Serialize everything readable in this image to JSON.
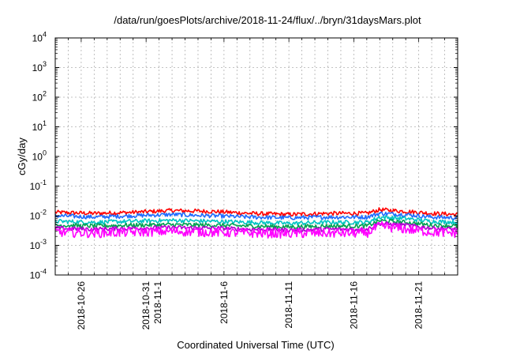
{
  "chart_data": {
    "type": "line",
    "title": "/data/run/goesPlots/archive/2018-11-24/flux/../bryn/31daysMars.plot",
    "xlabel": "Coordinated Universal Time (UTC)",
    "ylabel": "cGy/day",
    "y_scale": "log",
    "ylim": [
      0.0001,
      10000
    ],
    "y_ticks": [
      {
        "value": 0.0001,
        "base": "10",
        "exp": "-4"
      },
      {
        "value": 0.001,
        "base": "10",
        "exp": "-3"
      },
      {
        "value": 0.01,
        "base": "10",
        "exp": "-2"
      },
      {
        "value": 0.1,
        "base": "10",
        "exp": "-1"
      },
      {
        "value": 1,
        "base": "10",
        "exp": "0"
      },
      {
        "value": 10,
        "base": "10",
        "exp": "1"
      },
      {
        "value": 100,
        "base": "10",
        "exp": "2"
      },
      {
        "value": 1000,
        "base": "10",
        "exp": "3"
      },
      {
        "value": 10000,
        "base": "10",
        "exp": "4"
      }
    ],
    "xlim": [
      "2018-10-24",
      "2018-11-24"
    ],
    "x_ticks": [
      {
        "date": "2018-10-26",
        "lines": [
          "2018-10-26"
        ]
      },
      {
        "date": "2018-10-31",
        "lines": [
          "2018-10-31",
          "2018-11-1"
        ]
      },
      {
        "date": "2018-11-06",
        "lines": [
          "2018-11-6"
        ]
      },
      {
        "date": "2018-11-11",
        "lines": [
          "2018-11-11"
        ]
      },
      {
        "date": "2018-11-16",
        "lines": [
          "2018-11-16"
        ]
      },
      {
        "date": "2018-11-21",
        "lines": [
          "2018-11-21"
        ]
      }
    ],
    "grid": true,
    "series": [
      {
        "color": "#ff0000",
        "x": [
          "2018-10-24",
          "2018-10-27",
          "2018-10-30",
          "2018-11-02",
          "2018-11-05",
          "2018-11-08",
          "2018-11-11",
          "2018-11-14",
          "2018-11-17",
          "2018-11-18",
          "2018-11-20",
          "2018-11-22",
          "2018-11-24"
        ],
        "values": [
          0.013,
          0.012,
          0.013,
          0.015,
          0.014,
          0.012,
          0.011,
          0.012,
          0.012,
          0.016,
          0.014,
          0.012,
          0.011
        ]
      },
      {
        "color": "#1e6bff",
        "x": [
          "2018-10-24",
          "2018-10-27",
          "2018-10-30",
          "2018-11-02",
          "2018-11-05",
          "2018-11-08",
          "2018-11-11",
          "2018-11-14",
          "2018-11-17",
          "2018-11-18",
          "2018-11-20",
          "2018-11-22",
          "2018-11-24"
        ],
        "values": [
          0.01,
          0.009,
          0.01,
          0.011,
          0.01,
          0.009,
          0.0085,
          0.009,
          0.009,
          0.012,
          0.011,
          0.009,
          0.0085
        ]
      },
      {
        "color": "#00c4c4",
        "x": [
          "2018-10-24",
          "2018-10-27",
          "2018-10-30",
          "2018-11-02",
          "2018-11-05",
          "2018-11-08",
          "2018-11-11",
          "2018-11-14",
          "2018-11-17",
          "2018-11-18",
          "2018-11-20",
          "2018-11-22",
          "2018-11-24"
        ],
        "values": [
          0.0065,
          0.006,
          0.0065,
          0.007,
          0.0065,
          0.006,
          0.0055,
          0.006,
          0.006,
          0.009,
          0.008,
          0.0065,
          0.006
        ]
      },
      {
        "color": "#00a050",
        "x": [
          "2018-10-24",
          "2018-10-27",
          "2018-10-30",
          "2018-11-02",
          "2018-11-05",
          "2018-11-08",
          "2018-11-11",
          "2018-11-14",
          "2018-11-17",
          "2018-11-18",
          "2018-11-20",
          "2018-11-22",
          "2018-11-24"
        ],
        "values": [
          0.0048,
          0.0045,
          0.0048,
          0.005,
          0.0048,
          0.0045,
          0.0042,
          0.0045,
          0.0045,
          0.0068,
          0.006,
          0.0048,
          0.0045
        ]
      },
      {
        "color": "#b000d0",
        "x": [
          "2018-10-24",
          "2018-10-27",
          "2018-10-30",
          "2018-11-02",
          "2018-11-05",
          "2018-11-08",
          "2018-11-11",
          "2018-11-14",
          "2018-11-17",
          "2018-11-18",
          "2018-11-20",
          "2018-11-22",
          "2018-11-24"
        ],
        "values": [
          0.0038,
          0.0035,
          0.0038,
          0.004,
          0.0038,
          0.0035,
          0.0033,
          0.0035,
          0.0035,
          0.0055,
          0.0048,
          0.0038,
          0.0035
        ]
      },
      {
        "color": "#ff00ff",
        "x": [
          "2018-10-24",
          "2018-10-27",
          "2018-10-30",
          "2018-11-02",
          "2018-11-05",
          "2018-11-08",
          "2018-11-11",
          "2018-11-14",
          "2018-11-17",
          "2018-11-18",
          "2018-11-20",
          "2018-11-22",
          "2018-11-24"
        ],
        "values": [
          0.0028,
          0.0026,
          0.0028,
          0.003,
          0.0028,
          0.0026,
          0.0025,
          0.0026,
          0.0026,
          0.0045,
          0.0035,
          0.0028,
          0.0026
        ]
      }
    ]
  }
}
